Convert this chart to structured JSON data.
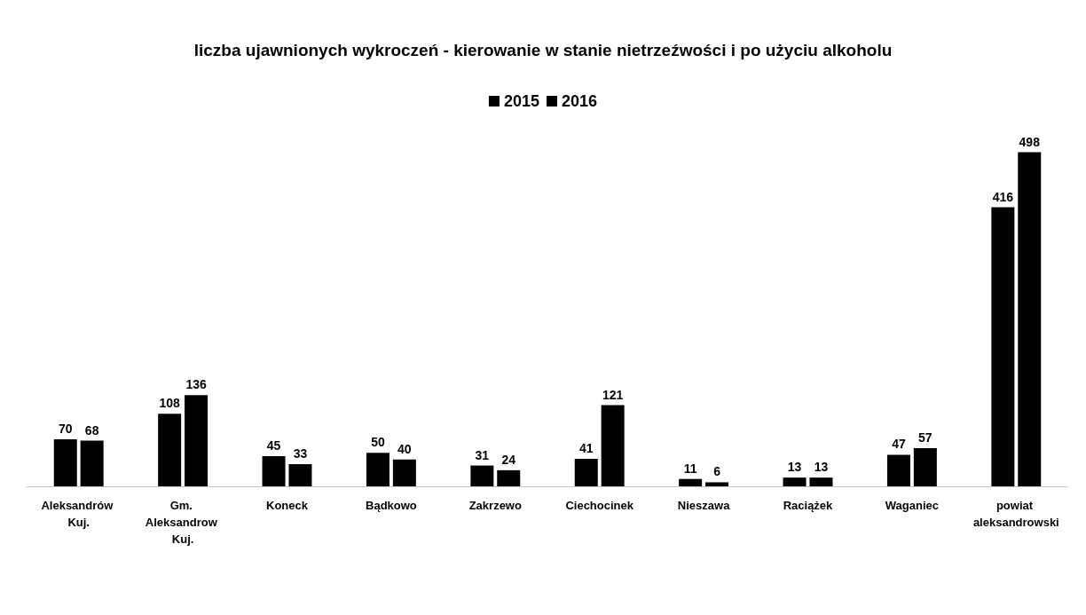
{
  "chart_data": {
    "type": "bar",
    "title": "liczba ujawnionych wykroczeń - kierowanie w stanie nietrzeźwości i po użyciu alkoholu",
    "categories": [
      "Aleksandrów Kuj.",
      "Gm. Aleksandrow Kuj.",
      "Koneck",
      "Bądkowo",
      "Zakrzewo",
      "Ciechocinek",
      "Nieszawa",
      "Raciążek",
      "Waganiec",
      "powiat aleksandrowski"
    ],
    "series": [
      {
        "name": "2015",
        "color": "#000000",
        "values": [
          70,
          108,
          45,
          50,
          31,
          41,
          11,
          13,
          47,
          416
        ]
      },
      {
        "name": "2016",
        "color": "#000000",
        "values": [
          68,
          136,
          33,
          40,
          24,
          121,
          6,
          13,
          57,
          498
        ]
      }
    ],
    "data_labels": true,
    "legend": "top",
    "grid": false
  }
}
